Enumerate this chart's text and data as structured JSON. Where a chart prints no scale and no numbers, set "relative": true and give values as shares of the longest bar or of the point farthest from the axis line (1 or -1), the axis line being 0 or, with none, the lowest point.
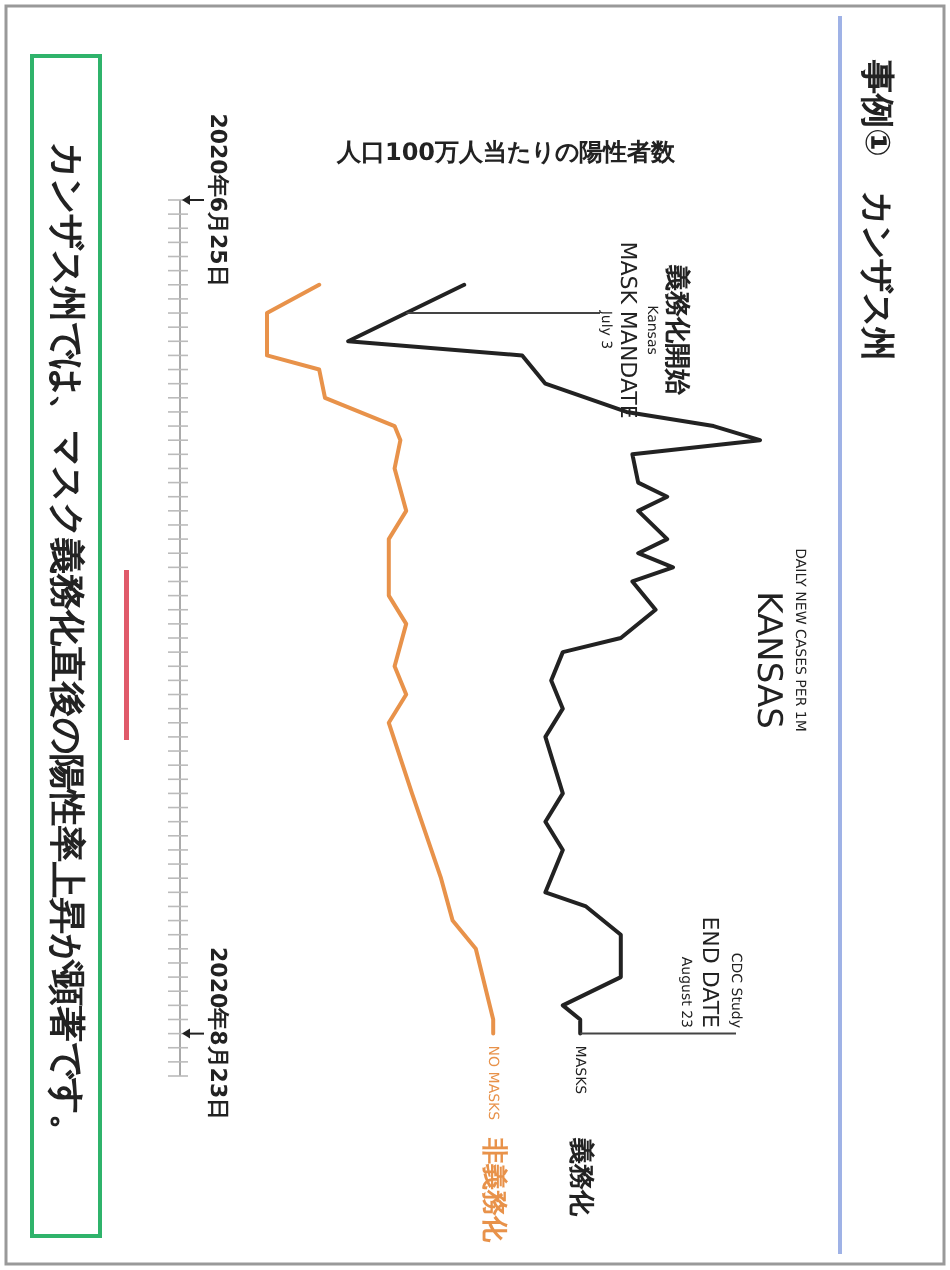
{
  "chart_data": {
    "type": "line",
    "orientation": "horizontal",
    "relative": true,
    "title": "事例①　カンザス州",
    "subtitle": "人口100万人当たりの陽性者数",
    "ylim": [
      "2020-08-26",
      "2020-06-25"
    ],
    "yticks": [
      {
        "value": "2020-06-25",
        "label": "2020年6月25日"
      },
      {
        "value": "2020-08-23",
        "label": "2020年8月23日"
      }
    ],
    "series": [
      {
        "name": "MASKS",
        "color": "#222222",
        "x": [
          "2020-07-01",
          "2020-07-03",
          "2020-07-05",
          "2020-07-06",
          "2020-07-08",
          "2020-07-10",
          "2020-07-11",
          "2020-07-12",
          "2020-07-13",
          "2020-07-15",
          "2020-07-16",
          "2020-07-17",
          "2020-07-19",
          "2020-07-20",
          "2020-07-21",
          "2020-07-22",
          "2020-07-24",
          "2020-07-26",
          "2020-07-27",
          "2020-07-29",
          "2020-07-31",
          "2020-08-02",
          "2020-08-06",
          "2020-08-08",
          "2020-08-10",
          "2020-08-13",
          "2020-08-14",
          "2020-08-16",
          "2020-08-19",
          "2020-08-21",
          "2020-08-22",
          "2020-08-23"
        ],
        "values": [
          0.49,
          0.39,
          0.29,
          0.59,
          0.63,
          0.77,
          0.92,
          1.0,
          0.78,
          0.79,
          0.84,
          0.79,
          0.84,
          0.79,
          0.85,
          0.78,
          0.82,
          0.76,
          0.66,
          0.64,
          0.66,
          0.63,
          0.66,
          0.63,
          0.66,
          0.63,
          0.7,
          0.76,
          0.76,
          0.66,
          0.69,
          0.69
        ]
      },
      {
        "name": "NO MASKS",
        "color": "#e8924a",
        "x": [
          "2020-07-01",
          "2020-07-03",
          "2020-07-06",
          "2020-07-07",
          "2020-07-09",
          "2020-07-11",
          "2020-07-12",
          "2020-07-14",
          "2020-07-17",
          "2020-07-19",
          "2020-07-23",
          "2020-07-25",
          "2020-07-28",
          "2020-07-30",
          "2020-08-01",
          "2020-08-06",
          "2020-08-12",
          "2020-08-15",
          "2020-08-17",
          "2020-08-22",
          "2020-08-23"
        ],
        "values": [
          0.24,
          0.15,
          0.15,
          0.24,
          0.25,
          0.37,
          0.38,
          0.37,
          0.39,
          0.36,
          0.36,
          0.39,
          0.37,
          0.39,
          0.36,
          0.4,
          0.45,
          0.47,
          0.51,
          0.54,
          0.54
        ]
      }
    ],
    "ref_lines": [
      {
        "axis": "y",
        "value": "2020-07-03",
        "label": "MASK MANDATE"
      },
      {
        "axis": "y",
        "value": "2020-08-23",
        "label": "END DATE"
      }
    ],
    "annotations": [
      "義務化開始",
      "Kansas",
      "July 3",
      "CDC Study",
      "August 23",
      "DAILY NEW CASES PER 1M",
      "KANSAS",
      "カンザス州では、マスク義務化直後の陽性率上昇が顕著です。",
      "義務化",
      "非義務化"
    ]
  }
}
